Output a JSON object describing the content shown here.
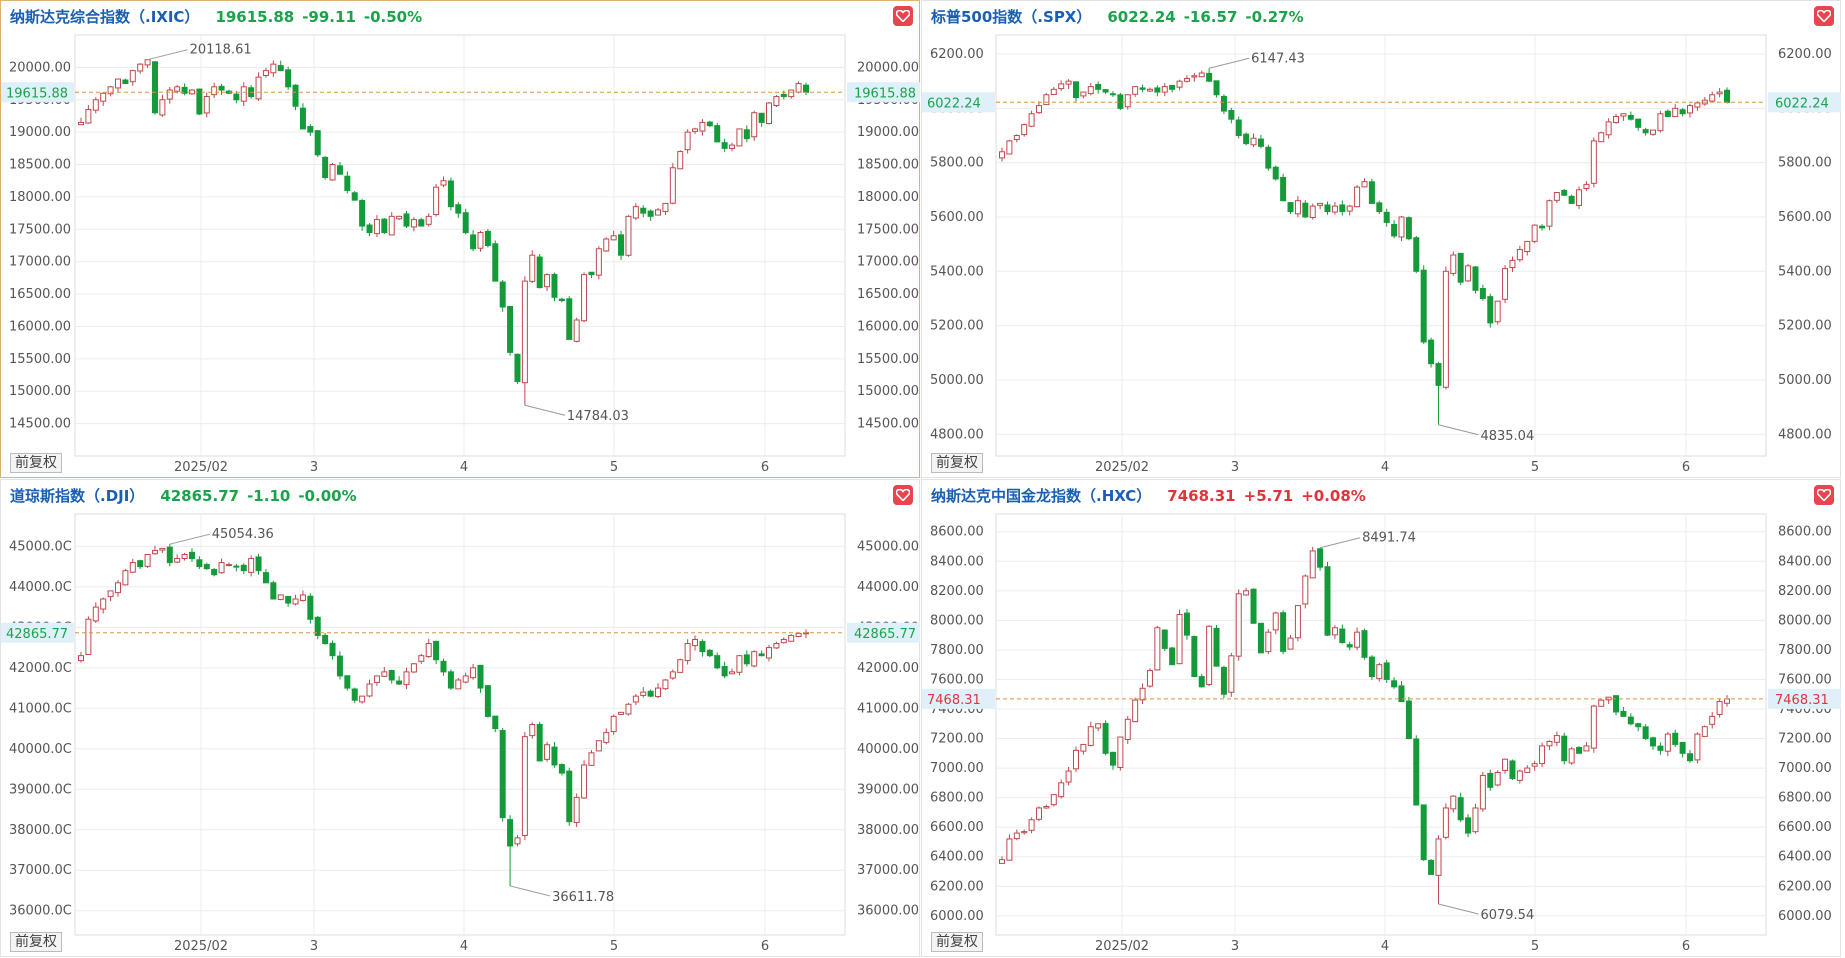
{
  "common": {
    "fq_label": "前复权",
    "heart_icon": "heart-icon"
  },
  "colors": {
    "up": "#c0484c",
    "down": "#159a3a",
    "axis_text": "#555555",
    "grid": "#ececec",
    "last_line": "#e0903a",
    "title_name": "#1a5fb4"
  },
  "months": [
    "2025/02",
    "3",
    "4",
    "5",
    "6"
  ],
  "panels": [
    {
      "name": "纳斯达克综合指数（.IXIC）",
      "value": "19615.88",
      "change": "-99.11",
      "pct": "-0.50%",
      "trend": "down",
      "last_label": "19615.88",
      "chart_data": {
        "type": "candlestick",
        "ylim": [
          14000,
          20500
        ],
        "yticks": [
          14500,
          15000,
          15500,
          16000,
          16500,
          17000,
          17500,
          18000,
          18500,
          19000,
          19500,
          20000
        ],
        "ytick_labels": [
          "14500.00",
          "15000.00",
          "15500.00",
          "16000.00",
          "16500.00",
          "17000.00",
          "17500.00",
          "18000.00",
          "18500.00",
          "19000.00",
          "19500.00",
          "20000.00"
        ],
        "last": 19615.88,
        "high_label": "20118.61",
        "high_value": 20118.61,
        "low_label": "14784.03",
        "low_value": 14784.03,
        "closes": [
          19150,
          19350,
          19500,
          19600,
          19700,
          19820,
          19750,
          19950,
          20050,
          20118,
          19300,
          19500,
          19650,
          19700,
          19600,
          19650,
          19280,
          19550,
          19700,
          19650,
          19600,
          19500,
          19700,
          19550,
          19850,
          19950,
          20050,
          19950,
          19700,
          19400,
          19050,
          19000,
          18650,
          18300,
          18500,
          18350,
          18100,
          17950,
          17550,
          17450,
          17650,
          17450,
          17700,
          17700,
          17550,
          17650,
          17550,
          17700,
          18150,
          18250,
          17850,
          17750,
          17450,
          17200,
          17450,
          17250,
          16700,
          16300,
          15600,
          15150,
          16700,
          17100,
          16600,
          16800,
          16450,
          16400,
          15800,
          16100,
          16800,
          16800,
          17200,
          17350,
          17400,
          17100,
          17700,
          17850,
          17750,
          17700,
          17800,
          17900,
          18450,
          18700,
          19000,
          19050,
          19150,
          19100,
          18850,
          18750,
          18800,
          19050,
          18900,
          19300,
          19150,
          19450,
          19550,
          19550,
          19650,
          19750,
          19615
        ]
      }
    },
    {
      "name": "标普500指数（.SPX）",
      "value": "6022.24",
      "change": "-16.57",
      "pct": "-0.27%",
      "trend": "down",
      "last_label": "6022.24",
      "chart_data": {
        "type": "candlestick",
        "ylim": [
          4720,
          6270
        ],
        "yticks": [
          4800,
          5000,
          5200,
          5400,
          5600,
          5800,
          6000,
          6200
        ],
        "ytick_labels": [
          "4800.00",
          "5000.00",
          "5200.00",
          "5400.00",
          "5600.00",
          "5800.00",
          "6000.00",
          "6200.00"
        ],
        "last": 6022.24,
        "high_label": "6147.43",
        "high_value": 6147.43,
        "low_label": "4835.04",
        "low_value": 4835.04,
        "closes": [
          5840,
          5880,
          5900,
          5940,
          5980,
          6010,
          6050,
          6070,
          6090,
          6100,
          6040,
          6060,
          6080,
          6070,
          6060,
          6050,
          6000,
          6050,
          6080,
          6070,
          6070,
          6060,
          6080,
          6070,
          6100,
          6110,
          6120,
          6130,
          6100,
          6050,
          5990,
          5960,
          5900,
          5870,
          5890,
          5860,
          5780,
          5740,
          5660,
          5620,
          5660,
          5600,
          5640,
          5650,
          5620,
          5640,
          5620,
          5640,
          5710,
          5730,
          5650,
          5620,
          5580,
          5530,
          5600,
          5520,
          5400,
          5140,
          5060,
          4980,
          5400,
          5460,
          5360,
          5420,
          5330,
          5300,
          5210,
          5290,
          5410,
          5440,
          5480,
          5510,
          5570,
          5560,
          5660,
          5690,
          5680,
          5650,
          5700,
          5720,
          5880,
          5910,
          5950,
          5970,
          5980,
          5960,
          5930,
          5910,
          5920,
          5980,
          5970,
          6000,
          5980,
          6010,
          6020,
          6030,
          6050,
          6060,
          6022
        ]
      }
    },
    {
      "name": "道琼斯指数（.DJI）",
      "value": "42865.77",
      "change": "-1.10",
      "pct": "-0.00%",
      "trend": "down",
      "last_label": "42865.77",
      "chart_data": {
        "type": "candlestick",
        "ylim": [
          35400,
          45800
        ],
        "yticks": [
          36000,
          37000,
          38000,
          39000,
          40000,
          41000,
          42000,
          43000,
          44000,
          45000
        ],
        "ytick_labels": [
          "36000.0C",
          "37000.0C",
          "38000.0C",
          "39000.0C",
          "40000.0C",
          "41000.0C",
          "42000.0C",
          "43000.0C",
          "44000.0C",
          "45000.0C"
        ],
        "ytick_labels_right": [
          "36000.00",
          "37000.00",
          "38000.00",
          "39000.00",
          "40000.00",
          "41000.00",
          "42000.00",
          "43000.00",
          "44000.00",
          "45000.00"
        ],
        "last": 42865.77,
        "high_label": "45054.36",
        "high_value": 45054.36,
        "low_label": "36611.78",
        "low_value": 36611.78,
        "closes": [
          42300,
          43200,
          43500,
          43700,
          43900,
          44100,
          44400,
          44600,
          44500,
          44800,
          44900,
          44950,
          44600,
          44700,
          44800,
          44700,
          44500,
          44450,
          44300,
          44600,
          44550,
          44500,
          44400,
          44700,
          44400,
          44100,
          43700,
          43800,
          43600,
          43700,
          43800,
          43200,
          42800,
          42600,
          42300,
          41800,
          41500,
          41200,
          41300,
          41600,
          41800,
          41900,
          41700,
          41600,
          41900,
          42100,
          42300,
          42600,
          42200,
          41900,
          41500,
          41700,
          41800,
          42000,
          41500,
          40800,
          40500,
          38300,
          37600,
          37800,
          40300,
          40600,
          39700,
          40100,
          39600,
          39400,
          38200,
          38800,
          39600,
          39900,
          40200,
          40400,
          40800,
          40900,
          41100,
          41300,
          41400,
          41300,
          41500,
          41700,
          41900,
          42200,
          42600,
          42700,
          42400,
          42300,
          42000,
          41800,
          41900,
          42300,
          42100,
          42400,
          42300,
          42500,
          42600,
          42700,
          42800,
          42850,
          42866
        ]
      }
    },
    {
      "name": "纳斯达克中国金龙指数（.HXC）",
      "value": "7468.31",
      "change": "+5.71",
      "pct": "+0.08%",
      "trend": "up",
      "last_label": "7468.31",
      "chart_data": {
        "type": "candlestick",
        "ylim": [
          5870,
          8720
        ],
        "yticks": [
          6000,
          6200,
          6400,
          6600,
          6800,
          7000,
          7200,
          7400,
          7600,
          7800,
          8000,
          8200,
          8400,
          8600
        ],
        "ytick_labels": [
          "6000.00",
          "6200.00",
          "6400.00",
          "6600.00",
          "6800.00",
          "7000.00",
          "7200.00",
          "7400.00",
          "7600.00",
          "7800.00",
          "8000.00",
          "8200.00",
          "8400.00",
          "8600.00"
        ],
        "last": 7468.31,
        "high_label": "8491.74",
        "high_value": 8491.74,
        "low_label": "6079.54",
        "low_value": 6079.54,
        "closes": [
          6380,
          6520,
          6560,
          6570,
          6650,
          6730,
          6740,
          6820,
          6900,
          6980,
          7120,
          7160,
          7280,
          7300,
          7100,
          7020,
          7210,
          7330,
          7460,
          7540,
          7660,
          7950,
          7810,
          7700,
          8040,
          7900,
          7620,
          7550,
          7960,
          7690,
          7500,
          7760,
          8180,
          8200,
          7980,
          7780,
          7920,
          8050,
          7790,
          7880,
          8100,
          8300,
          8470,
          8360,
          7900,
          7950,
          7850,
          7820,
          7920,
          7750,
          7620,
          7700,
          7600,
          7550,
          7450,
          7200,
          6750,
          6380,
          6280,
          6520,
          6730,
          6810,
          6650,
          6560,
          6730,
          6950,
          6870,
          6970,
          7060,
          6930,
          6980,
          7000,
          7030,
          7150,
          7180,
          7220,
          7050,
          7130,
          7100,
          7150,
          7420,
          7460,
          7480,
          7380,
          7350,
          7300,
          7280,
          7200,
          7150,
          7120,
          7230,
          7160,
          7100,
          7050,
          7230,
          7280,
          7350,
          7450,
          7468
        ]
      }
    }
  ]
}
